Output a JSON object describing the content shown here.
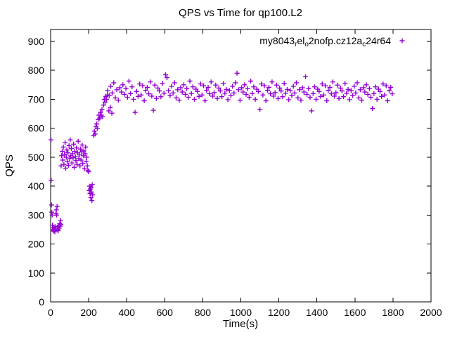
{
  "chart_data": {
    "type": "scatter",
    "title": "QPS vs Time for qp100.L2",
    "xlabel": "Time(s)",
    "ylabel": "QPS",
    "xlim": [
      0,
      2000
    ],
    "ylim": [
      0,
      900
    ],
    "xticks": [
      0,
      200,
      400,
      600,
      800,
      1000,
      1200,
      1400,
      1600,
      1800,
      2000
    ],
    "yticks": [
      0,
      100,
      200,
      300,
      400,
      500,
      600,
      700,
      800,
      900
    ],
    "grid": false,
    "legend_position": "top-right-inside",
    "series": [
      {
        "name": "my8043_rel_o2nofp.cz12a_c24r64",
        "label_segments": [
          {
            "text": "my8043",
            "sub": false
          },
          {
            "text": "r",
            "sub": true
          },
          {
            "text": "el",
            "sub": false
          },
          {
            "text": "o",
            "sub": true
          },
          {
            "text": "2nofp.cz12a",
            "sub": false
          },
          {
            "text": "c",
            "sub": true
          },
          {
            "text": "24r64",
            "sub": false
          }
        ],
        "marker": "plus",
        "color": "#9400d3",
        "points": [
          [
            2,
            560
          ],
          [
            3,
            420
          ],
          [
            5,
            335
          ],
          [
            6,
            310
          ],
          [
            8,
            300
          ],
          [
            10,
            265
          ],
          [
            12,
            250
          ],
          [
            14,
            245
          ],
          [
            16,
            256
          ],
          [
            18,
            248
          ],
          [
            20,
            252
          ],
          [
            22,
            242
          ],
          [
            24,
            260
          ],
          [
            26,
            250
          ],
          [
            28,
            305
          ],
          [
            30,
            318
          ],
          [
            32,
            300
          ],
          [
            34,
            330
          ],
          [
            36,
            258
          ],
          [
            38,
            250
          ],
          [
            40,
            246
          ],
          [
            42,
            262
          ],
          [
            45,
            255
          ],
          [
            48,
            270
          ],
          [
            50,
            262
          ],
          [
            52,
            282
          ],
          [
            54,
            268
          ],
          [
            55,
            470
          ],
          [
            58,
            505
          ],
          [
            61,
            520
          ],
          [
            64,
            490
          ],
          [
            67,
            535
          ],
          [
            70,
            475
          ],
          [
            73,
            510
          ],
          [
            76,
            550
          ],
          [
            79,
            462
          ],
          [
            82,
            500
          ],
          [
            85,
            525
          ],
          [
            88,
            485
          ],
          [
            91,
            515
          ],
          [
            94,
            472
          ],
          [
            97,
            540
          ],
          [
            100,
            495
          ],
          [
            103,
            560
          ],
          [
            106,
            505
          ],
          [
            109,
            530
          ],
          [
            112,
            480
          ],
          [
            115,
            512
          ],
          [
            118,
            498
          ],
          [
            121,
            545
          ],
          [
            124,
            465
          ],
          [
            127,
            520
          ],
          [
            130,
            502
          ],
          [
            133,
            488
          ],
          [
            136,
            532
          ],
          [
            139,
            475
          ],
          [
            142,
            515
          ],
          [
            145,
            555
          ],
          [
            148,
            495
          ],
          [
            151,
            508
          ],
          [
            154,
            470
          ],
          [
            157,
            528
          ],
          [
            160,
            490
          ],
          [
            163,
            518
          ],
          [
            166,
            542
          ],
          [
            169,
            478
          ],
          [
            172,
            505
          ],
          [
            175,
            522
          ],
          [
            178,
            460
          ],
          [
            181,
            512
          ],
          [
            184,
            535
          ],
          [
            187,
            486
          ],
          [
            190,
            500
          ],
          [
            193,
            470
          ],
          [
            196,
            455
          ],
          [
            199,
            450
          ],
          [
            203,
            385
          ],
          [
            205,
            400
          ],
          [
            207,
            375
          ],
          [
            209,
            390
          ],
          [
            211,
            360
          ],
          [
            213,
            395
          ],
          [
            215,
            380
          ],
          [
            217,
            350
          ],
          [
            219,
            405
          ],
          [
            221,
            370
          ],
          [
            226,
            575
          ],
          [
            230,
            590
          ],
          [
            234,
            580
          ],
          [
            238,
            605
          ],
          [
            242,
            615
          ],
          [
            246,
            600
          ],
          [
            250,
            630
          ],
          [
            254,
            645
          ],
          [
            258,
            635
          ],
          [
            262,
            655
          ],
          [
            266,
            645
          ],
          [
            270,
            665
          ],
          [
            274,
            640
          ],
          [
            278,
            680
          ],
          [
            282,
            700
          ],
          [
            286,
            690
          ],
          [
            290,
            710
          ],
          [
            294,
            700
          ],
          [
            298,
            715
          ],
          [
            300,
            730
          ],
          [
            306,
            660
          ],
          [
            308,
            713
          ],
          [
            314,
            672
          ],
          [
            316,
            745
          ],
          [
            322,
            652
          ],
          [
            324,
            722
          ],
          [
            332,
            757
          ],
          [
            340,
            705
          ],
          [
            348,
            733
          ],
          [
            356,
            697
          ],
          [
            364,
            740
          ],
          [
            372,
            725
          ],
          [
            380,
            750
          ],
          [
            388,
            717
          ],
          [
            396,
            737
          ],
          [
            404,
            707
          ],
          [
            412,
            763
          ],
          [
            420,
            720
          ],
          [
            428,
            743
          ],
          [
            436,
            700
          ],
          [
            444,
            655
          ],
          [
            452,
            727
          ],
          [
            460,
            710
          ],
          [
            468,
            753
          ],
          [
            476,
            715
          ],
          [
            484,
            747
          ],
          [
            492,
            695
          ],
          [
            500,
            731
          ],
          [
            508,
            741
          ],
          [
            516,
            719
          ],
          [
            524,
            760
          ],
          [
            532,
            711
          ],
          [
            540,
            662
          ],
          [
            548,
            749
          ],
          [
            556,
            703
          ],
          [
            564,
            739
          ],
          [
            572,
            729
          ],
          [
            580,
            709
          ],
          [
            588,
            755
          ],
          [
            596,
            721
          ],
          [
            604,
            785
          ],
          [
            612,
            775
          ],
          [
            620,
            730
          ],
          [
            628,
            713
          ],
          [
            636,
            745
          ],
          [
            644,
            722
          ],
          [
            652,
            757
          ],
          [
            660,
            705
          ],
          [
            668,
            733
          ],
          [
            676,
            697
          ],
          [
            684,
            740
          ],
          [
            692,
            725
          ],
          [
            700,
            750
          ],
          [
            708,
            717
          ],
          [
            716,
            737
          ],
          [
            724,
            707
          ],
          [
            732,
            763
          ],
          [
            740,
            720
          ],
          [
            748,
            743
          ],
          [
            756,
            700
          ],
          [
            764,
            735
          ],
          [
            772,
            727
          ],
          [
            780,
            710
          ],
          [
            788,
            753
          ],
          [
            796,
            715
          ],
          [
            804,
            747
          ],
          [
            812,
            695
          ],
          [
            820,
            731
          ],
          [
            828,
            741
          ],
          [
            836,
            719
          ],
          [
            844,
            760
          ],
          [
            852,
            711
          ],
          [
            860,
            723
          ],
          [
            868,
            749
          ],
          [
            876,
            703
          ],
          [
            884,
            739
          ],
          [
            892,
            729
          ],
          [
            900,
            709
          ],
          [
            908,
            755
          ],
          [
            916,
            721
          ],
          [
            924,
            734
          ],
          [
            932,
            699
          ],
          [
            940,
            730
          ],
          [
            948,
            713
          ],
          [
            956,
            745
          ],
          [
            964,
            722
          ],
          [
            972,
            757
          ],
          [
            980,
            790
          ],
          [
            988,
            733
          ],
          [
            996,
            697
          ],
          [
            1004,
            740
          ],
          [
            1012,
            725
          ],
          [
            1020,
            750
          ],
          [
            1028,
            717
          ],
          [
            1036,
            737
          ],
          [
            1044,
            707
          ],
          [
            1052,
            763
          ],
          [
            1060,
            720
          ],
          [
            1068,
            743
          ],
          [
            1076,
            700
          ],
          [
            1084,
            735
          ],
          [
            1092,
            727
          ],
          [
            1100,
            665
          ],
          [
            1108,
            753
          ],
          [
            1116,
            715
          ],
          [
            1124,
            747
          ],
          [
            1132,
            695
          ],
          [
            1140,
            731
          ],
          [
            1148,
            741
          ],
          [
            1156,
            719
          ],
          [
            1164,
            760
          ],
          [
            1172,
            711
          ],
          [
            1180,
            723
          ],
          [
            1188,
            749
          ],
          [
            1196,
            703
          ],
          [
            1204,
            739
          ],
          [
            1212,
            729
          ],
          [
            1220,
            709
          ],
          [
            1228,
            755
          ],
          [
            1236,
            721
          ],
          [
            1244,
            734
          ],
          [
            1252,
            699
          ],
          [
            1260,
            730
          ],
          [
            1268,
            713
          ],
          [
            1276,
            745
          ],
          [
            1284,
            722
          ],
          [
            1292,
            757
          ],
          [
            1300,
            705
          ],
          [
            1308,
            733
          ],
          [
            1316,
            697
          ],
          [
            1324,
            740
          ],
          [
            1332,
            725
          ],
          [
            1340,
            778
          ],
          [
            1348,
            717
          ],
          [
            1356,
            737
          ],
          [
            1364,
            707
          ],
          [
            1372,
            660
          ],
          [
            1380,
            720
          ],
          [
            1388,
            743
          ],
          [
            1396,
            700
          ],
          [
            1404,
            735
          ],
          [
            1412,
            727
          ],
          [
            1420,
            710
          ],
          [
            1428,
            753
          ],
          [
            1436,
            715
          ],
          [
            1444,
            747
          ],
          [
            1452,
            695
          ],
          [
            1460,
            731
          ],
          [
            1468,
            741
          ],
          [
            1476,
            719
          ],
          [
            1484,
            760
          ],
          [
            1492,
            711
          ],
          [
            1500,
            723
          ],
          [
            1508,
            749
          ],
          [
            1516,
            703
          ],
          [
            1524,
            739
          ],
          [
            1532,
            729
          ],
          [
            1540,
            709
          ],
          [
            1548,
            755
          ],
          [
            1556,
            721
          ],
          [
            1564,
            734
          ],
          [
            1572,
            699
          ],
          [
            1580,
            730
          ],
          [
            1588,
            713
          ],
          [
            1596,
            745
          ],
          [
            1604,
            722
          ],
          [
            1612,
            757
          ],
          [
            1620,
            705
          ],
          [
            1628,
            733
          ],
          [
            1636,
            697
          ],
          [
            1644,
            740
          ],
          [
            1652,
            725
          ],
          [
            1660,
            750
          ],
          [
            1668,
            717
          ],
          [
            1676,
            737
          ],
          [
            1684,
            707
          ],
          [
            1692,
            668
          ],
          [
            1700,
            720
          ],
          [
            1708,
            743
          ],
          [
            1716,
            700
          ],
          [
            1724,
            735
          ],
          [
            1732,
            727
          ],
          [
            1740,
            710
          ],
          [
            1748,
            753
          ],
          [
            1756,
            715
          ],
          [
            1764,
            747
          ],
          [
            1772,
            695
          ],
          [
            1780,
            731
          ],
          [
            1788,
            741
          ],
          [
            1796,
            719
          ]
        ]
      }
    ]
  }
}
